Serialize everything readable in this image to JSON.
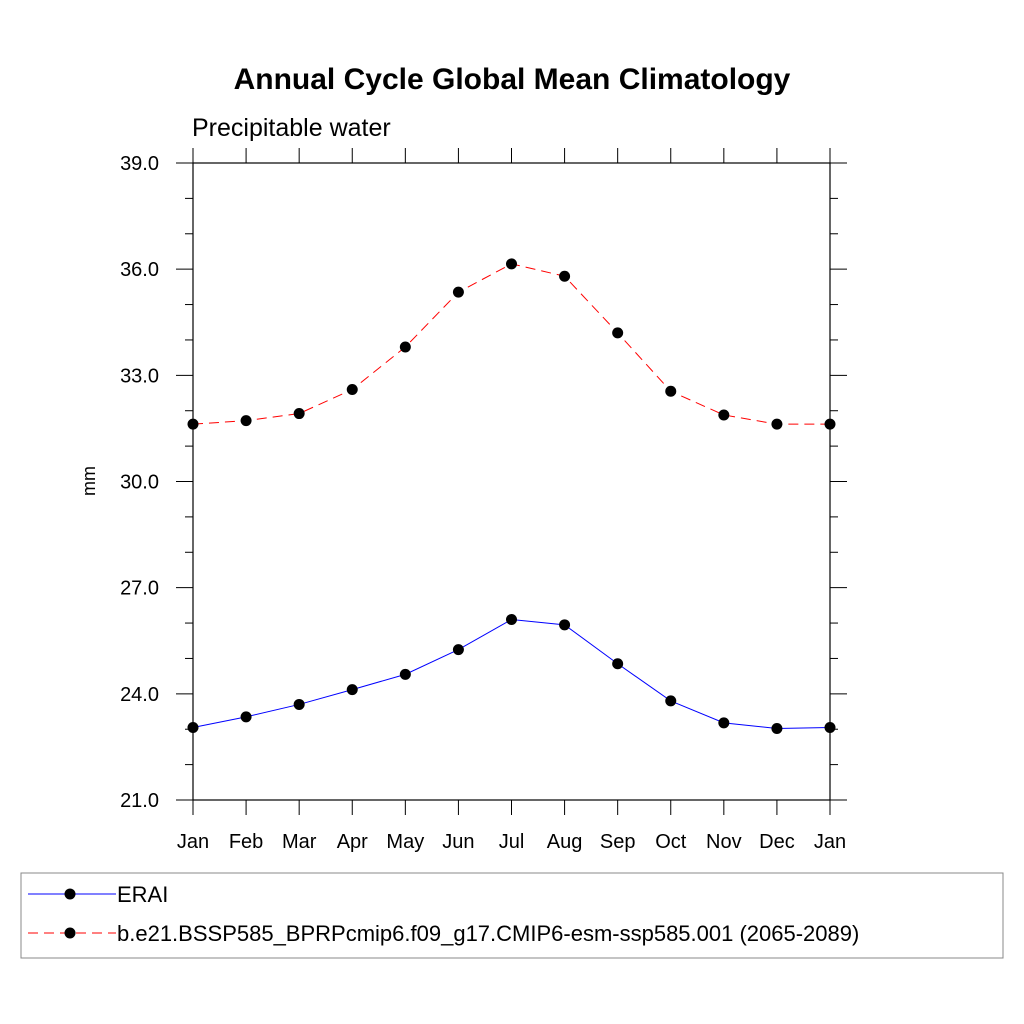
{
  "chart_data": {
    "type": "line",
    "title": "Annual Cycle Global Mean Climatology",
    "subtitle": "Precipitable water",
    "xlabel": "",
    "ylabel": "mm",
    "categories": [
      "Jan",
      "Feb",
      "Mar",
      "Apr",
      "May",
      "Jun",
      "Jul",
      "Aug",
      "Sep",
      "Oct",
      "Nov",
      "Dec",
      "Jan"
    ],
    "ylim": [
      21.0,
      39.0
    ],
    "yticks": [
      "21.0",
      "24.0",
      "27.0",
      "30.0",
      "33.0",
      "36.0",
      "39.0"
    ],
    "grid": false,
    "legend_position": "bottom",
    "series": [
      {
        "name": "ERAI",
        "color": "#0000ff",
        "dash": "solid",
        "values": [
          23.05,
          23.35,
          23.7,
          24.12,
          24.55,
          25.25,
          26.1,
          25.95,
          24.85,
          23.8,
          23.18,
          23.02,
          23.05
        ]
      },
      {
        "name": "b.e21.BSSP585_BPRPcmip6.f09_g17.CMIP6-esm-ssp585.001 (2065-2089)",
        "color": "#ff0000",
        "dash": "dashed",
        "values": [
          31.62,
          31.72,
          31.92,
          32.6,
          33.8,
          35.35,
          36.15,
          35.8,
          34.2,
          32.55,
          31.88,
          31.62,
          31.62
        ]
      }
    ]
  }
}
